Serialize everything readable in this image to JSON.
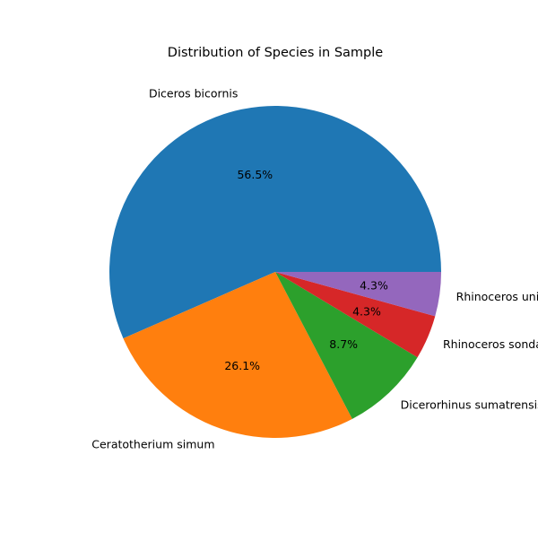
{
  "chart_data": {
    "type": "pie",
    "title": "Distribution of Species in Sample",
    "slices": [
      {
        "label": "Diceros bicornis",
        "value": 56.5,
        "pct_label": "56.5%",
        "color": "#1f77b4"
      },
      {
        "label": "Ceratotherium simum",
        "value": 26.1,
        "pct_label": "26.1%",
        "color": "#ff7f0e"
      },
      {
        "label": "Dicerorhinus sumatrensis",
        "value": 8.7,
        "pct_label": "8.7%",
        "color": "#2ca02c"
      },
      {
        "label": "Rhinoceros sondaicus",
        "value": 4.3,
        "pct_label": "4.3%",
        "color": "#d62728"
      },
      {
        "label": "Rhinoceros unicornis",
        "value": 4.3,
        "pct_label": "4.3%",
        "color": "#9467bd"
      }
    ],
    "start_angle_deg": 0,
    "direction": "counterclockwise"
  }
}
